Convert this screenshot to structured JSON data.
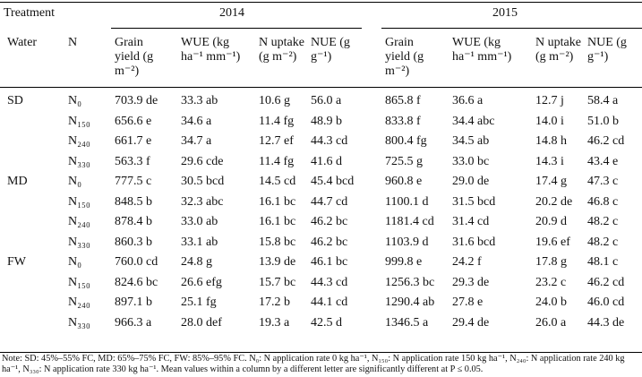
{
  "table": {
    "header": {
      "treatment": "Treatment",
      "years": [
        "2014",
        "2015"
      ],
      "water": "Water",
      "n": "N",
      "columns": [
        "Grain yield (g m⁻²)",
        "WUE (kg ha⁻¹ mm⁻¹)",
        "N uptake (g m⁻²)",
        "NUE (g g⁻¹)",
        "Grain yield (g m⁻²)",
        "WUE (kg ha⁻¹ mm⁻¹)",
        "N uptake (g m⁻²)",
        "NUE (g g⁻¹)"
      ]
    },
    "groups": [
      {
        "water": "SD",
        "rows": [
          {
            "n": "N₀",
            "cells": [
              "703.9 de",
              "33.3 ab",
              "10.6 g",
              "56.0 a",
              "865.8 f",
              "36.6 a",
              "12.7 j",
              "58.4 a"
            ]
          },
          {
            "n": "N₁₅₀",
            "cells": [
              "656.6 e",
              "34.6 a",
              "11.4 fg",
              "48.9 b",
              "833.8 f",
              "34.4 abc",
              "14.0 i",
              "51.0 b"
            ]
          },
          {
            "n": "N₂₄₀",
            "cells": [
              "661.7 e",
              "34.7 a",
              "12.7 ef",
              "44.3 cd",
              "800.4 fg",
              "34.5 ab",
              "14.8 h",
              "46.2 cd"
            ]
          },
          {
            "n": "N₃₃₀",
            "cells": [
              "563.3 f",
              "29.6 cde",
              "11.4 fg",
              "41.6 d",
              "725.5 g",
              "33.0 bc",
              "14.3 i",
              "43.4 e"
            ]
          }
        ]
      },
      {
        "water": "MD",
        "rows": [
          {
            "n": "N₀",
            "cells": [
              "777.5 c",
              "30.5 bcd",
              "14.5 cd",
              "45.4 bcd",
              "960.8 e",
              "29.0 de",
              "17.4 g",
              "47.3 c"
            ]
          },
          {
            "n": "N₁₅₀",
            "cells": [
              "848.5 b",
              "32.3 abc",
              "16.1 bc",
              "44.7 cd",
              "1100.1 d",
              "31.5 bcd",
              "20.2 de",
              "46.8 c"
            ]
          },
          {
            "n": "N₂₄₀",
            "cells": [
              "878.4 b",
              "33.0 ab",
              "16.1 bc",
              "46.2 bc",
              "1181.4 cd",
              "31.4 cd",
              "20.9 d",
              "48.2 c"
            ]
          },
          {
            "n": "N₃₃₀",
            "cells": [
              "860.3 b",
              "33.1 ab",
              "15.8 bc",
              "46.2 bc",
              "1103.9 d",
              "31.6 bcd",
              "19.6 ef",
              "48.2 c"
            ]
          }
        ]
      },
      {
        "water": "FW",
        "rows": [
          {
            "n": "N₀",
            "cells": [
              "760.0 cd",
              "24.8 g",
              "13.9 de",
              "46.1 bc",
              "999.8 e",
              "24.2 f",
              "17.8 g",
              "48.1 c"
            ]
          },
          {
            "n": "N₁₅₀",
            "cells": [
              "824.6 bc",
              "26.6 efg",
              "15.7 bc",
              "44.3 cd",
              "1256.3 bc",
              "29.3 de",
              "23.2 c",
              "46.2 cd"
            ]
          },
          {
            "n": "N₂₄₀",
            "cells": [
              "897.1 b",
              "25.1 fg",
              "17.2 b",
              "44.1 cd",
              "1290.4 ab",
              "27.8 e",
              "24.0 b",
              "46.0 cd"
            ]
          },
          {
            "n": "N₃₃₀",
            "cells": [
              "966.3 a",
              "28.0 def",
              "19.3 a",
              "42.5 d",
              "1346.5 a",
              "29.4 de",
              "26.0 a",
              "44.3 de"
            ]
          }
        ]
      }
    ],
    "note": "Note: SD: 45%–55% FC, MD: 65%–75% FC, FW: 85%–95% FC. N₀: N application rate 0 kg ha⁻¹, N₁₅₀: N application rate 150 kg ha⁻¹, N₂₄₀: N application rate 240 kg ha⁻¹, N₃₃₀: N application rate 330 kg ha⁻¹. Mean values within a column by a different letter are significantly different at P ≤ 0.05."
  }
}
